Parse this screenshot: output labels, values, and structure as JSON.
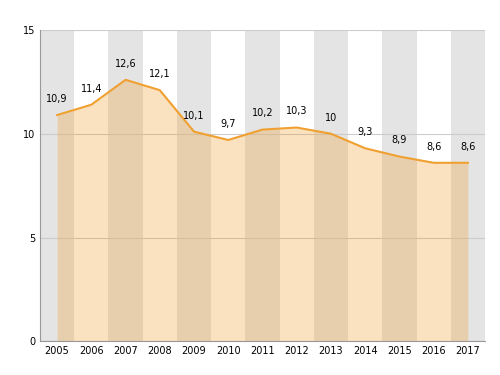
{
  "chart_data": {
    "type": "area",
    "categories": [
      "2005",
      "2006",
      "2007",
      "2008",
      "2009",
      "2010",
      "2011",
      "2012",
      "2013",
      "2014",
      "2015",
      "2016",
      "2017"
    ],
    "values": [
      10.9,
      11.4,
      12.6,
      12.1,
      10.1,
      9.7,
      10.2,
      10.3,
      10,
      9.3,
      8.9,
      8.6,
      8.6
    ],
    "value_labels": [
      "10,9",
      "11,4",
      "12,6",
      "12,1",
      "10,1",
      "9,7",
      "10,2",
      "10,3",
      "10",
      "9,3",
      "8,9",
      "8,6",
      "8,6"
    ],
    "color": "#f0a030",
    "ylim": [
      0,
      15
    ],
    "yticks": [
      0,
      5,
      10,
      15
    ],
    "grid": true,
    "data_labels": true
  }
}
